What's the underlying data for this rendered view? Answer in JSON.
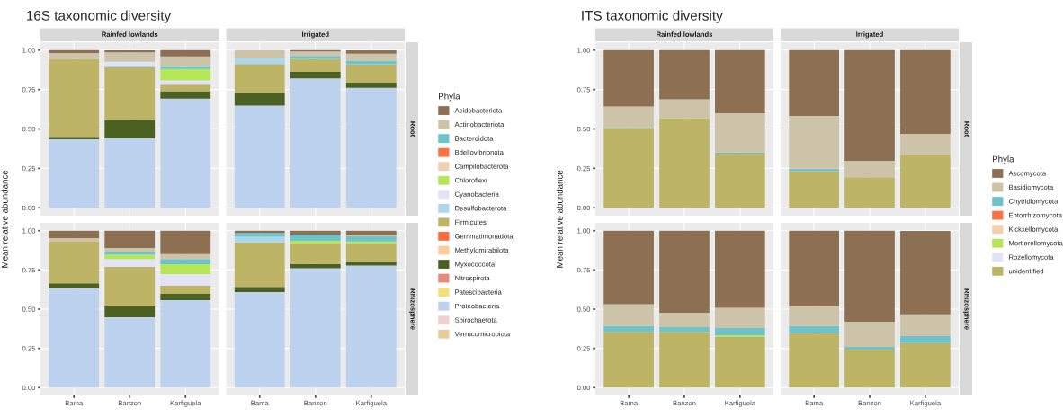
{
  "chart_data": [
    {
      "type": "bar",
      "stacked": true,
      "title": "16S taxonomic diversity",
      "ylabel": "Mean relative abundance",
      "annotations": [
        "Rainfed lowlands",
        "Irrigated",
        "Root"
      ],
      "categories": [
        null,
        null,
        null,
        null,
        null,
        null
      ],
      "ylim": [
        -0.05,
        1.05
      ],
      "yticks": [
        {
          "value": 0,
          "label": "0.00"
        },
        {
          "value": 0.25,
          "label": "0.25"
        },
        {
          "value": 0.5,
          "label": "0.50"
        },
        {
          "value": 0.75,
          "label": "0.75"
        },
        {
          "value": 1,
          "label": "1.00"
        }
      ],
      "grid": true,
      "tick_labels": "y",
      "legend": "right",
      "legend_title": "Phyla",
      "series": [
        {
          "name": "Verrucomicrobiota",
          "color": "#e8cc99",
          "values": [
            null,
            null,
            null,
            null,
            null,
            null
          ]
        },
        {
          "name": "Spirochaetota",
          "color": "#f2d0d0",
          "values": [
            null,
            null,
            null,
            null,
            null,
            null
          ]
        },
        {
          "name": "Proteobacteria",
          "color": "#bcd2ee",
          "values": [
            0.435,
            0.44,
            0.692,
            0.648,
            0.82,
            0.761
          ]
        },
        {
          "name": "Patescibacteria",
          "color": "#f2e07a",
          "values": [
            null,
            null,
            null,
            null,
            null,
            null
          ]
        },
        {
          "name": "Nitrospirota",
          "color": "#e88a7a",
          "values": [
            null,
            null,
            null,
            null,
            null,
            null
          ]
        },
        {
          "name": "Myxococcota",
          "color": "#4b6121",
          "values": [
            0.015,
            0.115,
            0.048,
            0.081,
            0.042,
            0.033
          ]
        },
        {
          "name": "Methylomirabilota",
          "color": "#ffcc99",
          "values": [
            null,
            null,
            null,
            null,
            null,
            null
          ]
        },
        {
          "name": "Gemmatimonadota",
          "color": "#ff6a3d",
          "values": [
            null,
            null,
            null,
            null,
            null,
            null
          ]
        },
        {
          "name": "Firmicutes",
          "color": "#bdb565",
          "values": [
            0.495,
            0.338,
            0.04,
            0.183,
            0.083,
            0.117
          ]
        },
        {
          "name": "Desulfobacterota",
          "color": "#aad8ea",
          "values": [
            null,
            0.009,
            null,
            0.037,
            null,
            null
          ]
        },
        {
          "name": "Cyanobacteria",
          "color": "#e3e3f5",
          "values": [
            null,
            0.024,
            0.028,
            null,
            null,
            null
          ]
        },
        {
          "name": "Chloroflexi",
          "color": "#b5e655",
          "values": [
            null,
            null,
            0.073,
            null,
            null,
            null
          ]
        },
        {
          "name": "Campilobacterota",
          "color": "#f0d0b0",
          "values": [
            null,
            null,
            null,
            null,
            null,
            null
          ]
        },
        {
          "name": "Bdellovibrionota",
          "color": "#ff7043",
          "values": [
            null,
            null,
            null,
            null,
            null,
            null
          ]
        },
        {
          "name": "Bacteroidota",
          "color": "#6cc3cc",
          "values": [
            null,
            null,
            0.018,
            null,
            0.018,
            0.022
          ]
        },
        {
          "name": "Actinobacteriota",
          "color": "#cdc3a8",
          "values": [
            0.037,
            0.06,
            0.061,
            0.051,
            0.028,
            0.044
          ]
        },
        {
          "name": "Acidobacteriota",
          "color": "#8c7051",
          "values": [
            0.018,
            0.013,
            0.04,
            null,
            0.009,
            0.022
          ]
        }
      ]
    },
    {
      "type": "bar",
      "stacked": true,
      "annotations": [
        "Rhizosphere"
      ],
      "categories": [
        "Bama",
        "Banzon",
        "Karfiguela",
        "Bama",
        "Banzon",
        "Karfiguela"
      ],
      "ylim": [
        -0.05,
        1.05
      ],
      "yticks": [
        {
          "value": 0,
          "label": "0.00"
        },
        {
          "value": 0.25,
          "label": "0.25"
        },
        {
          "value": 0.5,
          "label": "0.50"
        },
        {
          "value": 0.75,
          "label": "0.75"
        },
        {
          "value": 1,
          "label": "1.00"
        }
      ],
      "grid": true,
      "series": [
        {
          "color": "#bcd2ee",
          "values": [
            0.633,
            0.448,
            0.558,
            0.609,
            0.76,
            0.778
          ]
        },
        {
          "color": "#4b6121",
          "values": [
            0.031,
            0.07,
            0.039,
            0.033,
            0.028,
            0.024
          ]
        },
        {
          "color": "#bdb565",
          "values": [
            0.266,
            0.251,
            0.053,
            0.284,
            0.13,
            0.114
          ]
        },
        {
          "color": "#aad8ea",
          "values": [
            null,
            null,
            null,
            0.035,
            null,
            null
          ]
        },
        {
          "color": "#e3e3f5",
          "values": [
            null,
            0.051,
            0.073,
            null,
            null,
            null
          ]
        },
        {
          "color": "#b5e655",
          "values": [
            null,
            0.028,
            0.064,
            null,
            0.018,
            0.015
          ]
        },
        {
          "color": "#6cc3cc",
          "values": [
            null,
            0.018,
            0.033,
            0.024,
            0.04,
            0.033
          ]
        },
        {
          "color": "#cdc3a8",
          "values": [
            0.022,
            0.024,
            0.031,
            null,
            null,
            0.007
          ]
        },
        {
          "color": "#8c7051",
          "values": [
            0.048,
            0.11,
            0.149,
            0.015,
            0.024,
            0.029
          ]
        }
      ]
    },
    {
      "type": "bar",
      "stacked": true,
      "title": "ITS taxonomic diversity",
      "ylabel": "Mean relative abundance",
      "annotations": [
        "Rainfed lowlands",
        "Irrigated",
        "Root"
      ],
      "categories": [
        null,
        null,
        null,
        null,
        null,
        null
      ],
      "ylim": [
        -0.05,
        1.05
      ],
      "yticks": [
        {
          "value": 0,
          "label": "0.00"
        },
        {
          "value": 0.25,
          "label": "0.25"
        },
        {
          "value": 0.5,
          "label": "0.50"
        },
        {
          "value": 0.75,
          "label": "0.75"
        },
        {
          "value": 1,
          "label": "1.00"
        }
      ],
      "grid": true,
      "tick_labels": "y",
      "legend": "right",
      "legend_title": "Phyla",
      "series": [
        {
          "name": "unidentified",
          "color": "#bdb565",
          "values": [
            0.505,
            0.569,
            0.343,
            0.233,
            0.193,
            0.336
          ]
        },
        {
          "name": "Rozellomycota",
          "color": "#e3e3f5",
          "values": [
            null,
            null,
            null,
            null,
            null,
            null
          ]
        },
        {
          "name": "Mortierellomycota",
          "color": "#b5e655",
          "values": [
            null,
            null,
            null,
            null,
            null,
            null
          ]
        },
        {
          "name": "Kickxellomycota",
          "color": "#f0d0b0",
          "values": [
            null,
            null,
            null,
            null,
            null,
            null
          ]
        },
        {
          "name": "Entorrhizomycota",
          "color": "#ff7043",
          "values": [
            null,
            null,
            null,
            null,
            null,
            null
          ]
        },
        {
          "name": "Chytridiomycota",
          "color": "#6cc3cc",
          "values": [
            0.005,
            null,
            0.009,
            0.015,
            null,
            null
          ]
        },
        {
          "name": "Basidiomycota",
          "color": "#cdc3a8",
          "values": [
            0.132,
            0.119,
            0.248,
            0.334,
            0.105,
            0.132
          ]
        },
        {
          "name": "Ascomycota",
          "color": "#8c7051",
          "values": [
            0.358,
            0.312,
            0.4,
            0.418,
            0.702,
            0.532
          ]
        }
      ]
    },
    {
      "type": "bar",
      "stacked": true,
      "annotations": [
        "Rhizosphere"
      ],
      "categories": [
        "Bama",
        "Banzon",
        "Karfiguela",
        "Bama",
        "Banzon",
        "Karfiguela"
      ],
      "ylim": [
        -0.05,
        1.05
      ],
      "yticks": [
        {
          "value": 0,
          "label": "0.00"
        },
        {
          "value": 0.25,
          "label": "0.25"
        },
        {
          "value": 0.5,
          "label": "0.50"
        },
        {
          "value": 0.75,
          "label": "0.75"
        },
        {
          "value": 1,
          "label": "1.00"
        }
      ],
      "grid": true,
      "series": [
        {
          "color": "#bdb565",
          "values": [
            0.356,
            0.356,
            0.325,
            0.347,
            0.242,
            0.284
          ]
        },
        {
          "color": "#b5e655",
          "values": [
            null,
            null,
            0.009,
            null,
            null,
            null
          ]
        },
        {
          "color": "#6cc3cc",
          "values": [
            0.037,
            0.029,
            0.046,
            0.046,
            0.018,
            0.044
          ]
        },
        {
          "color": "#cdc3a8",
          "values": [
            0.139,
            0.092,
            0.128,
            0.125,
            0.16,
            0.139
          ]
        },
        {
          "color": "#8c7051",
          "values": [
            0.468,
            0.523,
            0.492,
            0.482,
            0.58,
            0.532
          ]
        }
      ]
    }
  ]
}
